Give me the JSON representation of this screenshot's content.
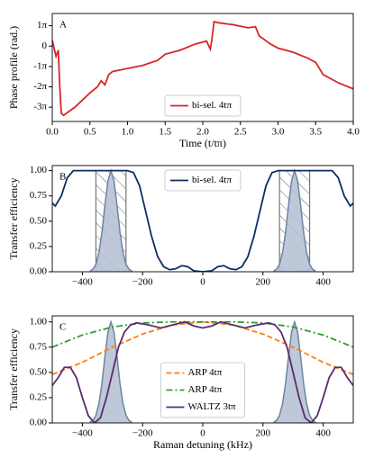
{
  "chart_data": [
    {
      "type": "line",
      "label": "A",
      "xlabel": "Time (t/tπ)",
      "ylabel": "Phase profile (rad.)",
      "xlim": [
        0,
        4
      ],
      "ylim": [
        -3.7,
        1.6
      ],
      "xticks": [
        {
          "value": 0,
          "label": "0.0"
        },
        {
          "value": 0.5,
          "label": "0.5"
        },
        {
          "value": 1,
          "label": "1.0"
        },
        {
          "value": 1.5,
          "label": "1.5"
        },
        {
          "value": 2,
          "label": "2.0"
        },
        {
          "value": 2.5,
          "label": "2.5"
        },
        {
          "value": 3,
          "label": "3.0"
        },
        {
          "value": 3.5,
          "label": "3.5"
        },
        {
          "value": 4,
          "label": "4.0"
        }
      ],
      "yticks": [
        {
          "value": 1,
          "label": "1π"
        },
        0,
        {
          "value": -1,
          "label": "-1π"
        },
        {
          "value": -2,
          "label": "-2π"
        },
        {
          "value": -3,
          "label": "-3π"
        }
      ],
      "legend": "lower center",
      "series": [
        {
          "name": "bi-sel. 4tπ",
          "color": "#d62728",
          "style": "solid",
          "x": [
            0,
            0.03,
            0.05,
            0.08,
            0.1,
            0.12,
            0.15,
            0.3,
            0.5,
            0.6,
            0.65,
            0.7,
            0.75,
            0.8,
            1.0,
            1.2,
            1.4,
            1.5,
            1.7,
            1.9,
            2.05,
            2.1,
            2.12,
            2.15,
            2.2,
            2.4,
            2.6,
            2.7,
            2.75,
            2.9,
            3.0,
            3.2,
            3.4,
            3.5,
            3.6,
            3.8,
            4.0
          ],
          "values": [
            0.3,
            -0.2,
            -0.5,
            -0.2,
            -2.0,
            -3.3,
            -3.4,
            -3.0,
            -2.3,
            -2.0,
            -1.7,
            -1.9,
            -1.4,
            -1.25,
            -1.1,
            -0.95,
            -0.7,
            -0.4,
            -0.2,
            0.1,
            0.25,
            -0.15,
            0.3,
            1.2,
            1.15,
            1.05,
            0.9,
            0.95,
            0.5,
            0.1,
            -0.1,
            -0.3,
            -0.6,
            -0.8,
            -1.4,
            -1.8,
            -2.1
          ]
        }
      ]
    },
    {
      "type": "line",
      "label": "B",
      "ylabel": "Transfer efficiency",
      "xlim": [
        -500,
        500
      ],
      "ylim": [
        0,
        1.05
      ],
      "xticks": [
        {
          "value": -400,
          "label": "−400"
        },
        {
          "value": -200,
          "label": "−200"
        },
        0,
        200,
        400
      ],
      "yticks": [
        {
          "value": 0,
          "label": "0.00"
        },
        {
          "value": 0.25,
          "label": "0.25"
        },
        {
          "value": 0.5,
          "label": "0.50"
        },
        {
          "value": 0.75,
          "label": "0.75"
        },
        {
          "value": 1,
          "label": "1.00"
        }
      ],
      "legend": "upper center",
      "regions": [
        [
          -355,
          -255
        ],
        [
          255,
          355
        ]
      ],
      "series": [
        {
          "color": "#6d84a6",
          "fill": "#b7c2d4",
          "style": "solid",
          "x": [
            -375,
            -365,
            -355,
            -345,
            -335,
            -325,
            -315,
            -305,
            -295,
            -285,
            -275,
            -265,
            -255,
            -245,
            -235
          ],
          "values": [
            0.006,
            0.024,
            0.075,
            0.19,
            0.39,
            0.66,
            0.9,
            1,
            0.9,
            0.66,
            0.39,
            0.19,
            0.075,
            0.024,
            0.006
          ]
        },
        {
          "color": "#6d84a6",
          "fill": "#b7c2d4",
          "style": "solid",
          "x": [
            235,
            245,
            255,
            265,
            275,
            285,
            295,
            305,
            315,
            325,
            335,
            345,
            355,
            365,
            375
          ],
          "values": [
            0.006,
            0.024,
            0.075,
            0.19,
            0.39,
            0.66,
            0.9,
            1,
            0.9,
            0.66,
            0.39,
            0.19,
            0.075,
            0.024,
            0.006
          ]
        },
        {
          "name": "bi-sel. 4tπ",
          "color": "#0d2f63",
          "style": "solid",
          "x": [
            -500,
            -490,
            -470,
            -450,
            -430,
            -400,
            -250,
            -230,
            -210,
            -190,
            -170,
            -150,
            -130,
            -110,
            -90,
            -70,
            -50,
            -30,
            0,
            30,
            50,
            70,
            90,
            110,
            130,
            150,
            170,
            190,
            210,
            230,
            250,
            400,
            430,
            450,
            470,
            490,
            500
          ],
          "values": [
            0.68,
            0.65,
            0.75,
            0.93,
            1.0,
            1.0,
            1.0,
            0.98,
            0.85,
            0.6,
            0.35,
            0.15,
            0.05,
            0.02,
            0.03,
            0.06,
            0.05,
            0.01,
            0.0,
            0.01,
            0.05,
            0.06,
            0.03,
            0.02,
            0.05,
            0.15,
            0.35,
            0.6,
            0.85,
            0.98,
            1.0,
            1.0,
            1.0,
            0.93,
            0.75,
            0.65,
            0.68
          ]
        }
      ]
    },
    {
      "type": "line",
      "label": "C",
      "xlabel": "Raman detuning (kHz)",
      "ylabel": "Transfer efficiency",
      "xlim": [
        -500,
        500
      ],
      "ylim": [
        0,
        1.06
      ],
      "xticks": [
        {
          "value": -400,
          "label": "−400"
        },
        {
          "value": -200,
          "label": "−200"
        },
        0,
        200,
        400
      ],
      "yticks": [
        {
          "value": 0,
          "label": "0.00"
        },
        {
          "value": 0.25,
          "label": "0.25"
        },
        {
          "value": 0.5,
          "label": "0.50"
        },
        {
          "value": 0.75,
          "label": "0.75"
        },
        {
          "value": 1,
          "label": "1.00"
        }
      ],
      "legend": "lower center",
      "series": [
        {
          "color": "#6d84a6",
          "fill": "#b7c2d4",
          "style": "solid",
          "x": [
            -375,
            -365,
            -355,
            -345,
            -335,
            -325,
            -315,
            -305,
            -295,
            -285,
            -275,
            -265,
            -255,
            -245,
            -235
          ],
          "values": [
            0.006,
            0.024,
            0.075,
            0.19,
            0.39,
            0.66,
            0.9,
            1,
            0.9,
            0.66,
            0.39,
            0.19,
            0.075,
            0.024,
            0.006
          ]
        },
        {
          "color": "#6d84a6",
          "fill": "#b7c2d4",
          "style": "solid",
          "x": [
            235,
            245,
            255,
            265,
            275,
            285,
            295,
            305,
            315,
            325,
            335,
            345,
            355,
            365,
            375
          ],
          "values": [
            0.006,
            0.024,
            0.075,
            0.19,
            0.39,
            0.66,
            0.9,
            1,
            0.9,
            0.66,
            0.39,
            0.19,
            0.075,
            0.024,
            0.006
          ]
        },
        {
          "name": "ARP 4tπ",
          "color": "#ff7f0e",
          "style": "dashed",
          "x": [
            -500,
            -400,
            -300,
            -200,
            -100,
            0,
            100,
            200,
            300,
            400,
            500
          ],
          "values": [
            0.48,
            0.6,
            0.75,
            0.88,
            0.97,
            1.0,
            0.97,
            0.88,
            0.75,
            0.6,
            0.48
          ]
        },
        {
          "name": "ARP 4tπ",
          "color": "#2ca02c",
          "style": "dashdot",
          "x": [
            -500,
            -400,
            -300,
            -200,
            -100,
            0,
            100,
            200,
            300,
            400,
            500
          ],
          "values": [
            0.75,
            0.87,
            0.95,
            0.99,
            1.0,
            1.0,
            1.0,
            0.99,
            0.95,
            0.87,
            0.75
          ]
        },
        {
          "name": "WALTZ 3tπ",
          "color": "#5b2c6f",
          "style": "solid",
          "x": [
            -500,
            -480,
            -460,
            -440,
            -420,
            -400,
            -380,
            -360,
            -340,
            -320,
            -300,
            -280,
            -260,
            -240,
            -220,
            -180,
            -140,
            -100,
            -60,
            -30,
            0,
            30,
            60,
            100,
            140,
            180,
            220,
            240,
            260,
            280,
            300,
            320,
            340,
            360,
            380,
            400,
            420,
            440,
            460,
            480,
            500
          ],
          "values": [
            0.37,
            0.45,
            0.55,
            0.55,
            0.45,
            0.25,
            0.07,
            0.0,
            0.05,
            0.25,
            0.5,
            0.75,
            0.9,
            0.97,
            0.99,
            0.97,
            0.94,
            0.97,
            1.0,
            0.96,
            0.94,
            0.96,
            1.0,
            0.97,
            0.94,
            0.97,
            0.99,
            0.97,
            0.9,
            0.75,
            0.5,
            0.25,
            0.05,
            0.0,
            0.07,
            0.25,
            0.45,
            0.55,
            0.55,
            0.45,
            0.37
          ]
        }
      ]
    }
  ]
}
